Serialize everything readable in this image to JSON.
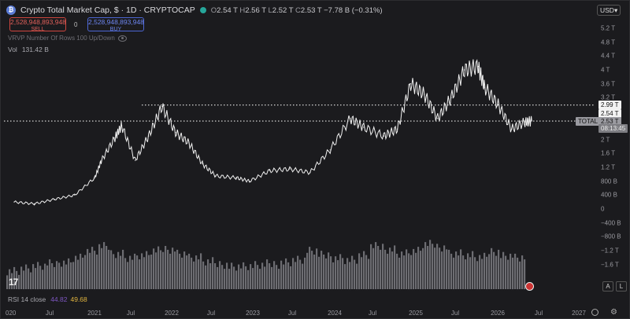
{
  "header": {
    "logo_glyph": "₿",
    "title": "Crypto Total Market Cap, $ · 1D · CRYPTOCAP",
    "ohlc": {
      "o_label": "O",
      "o": "2.54 T",
      "h_label": "H",
      "h": "2.56 T",
      "l_label": "L",
      "l": "2.52 T",
      "c_label": "C",
      "c": "2.53 T",
      "change": "−7.78 B (−0.31%)"
    }
  },
  "currency": {
    "value": "USD"
  },
  "trade": {
    "sell_price": "2,528,948,893,948",
    "sell_label": "SELL",
    "spread": "0",
    "buy_price": "2,528,948,893,948",
    "buy_label": "BUY"
  },
  "indicators": {
    "vrvp": "VRVP Number Of Rows 100 Up/Down",
    "vol_label": "Vol",
    "vol_value": "131.42 B",
    "rsi_label": "RSI 14 close",
    "rsi_value1": "44.82",
    "rsi_value2": "49.68"
  },
  "price_tags": {
    "level_high": "2.99 T",
    "open_tag": "2.54 T",
    "symbol": "TOTAL",
    "last": "2.53 T",
    "countdown": "08:13:45"
  },
  "scale_buttons": {
    "auto": "A",
    "log": "L"
  },
  "colors": {
    "background": "#1b1b1e",
    "line": "#f0f0f0",
    "volume": "#8a8a8f",
    "sell": "#d0463f",
    "buy": "#4c66d4"
  },
  "chart_data": {
    "type": "line",
    "title": "Crypto Total Market Cap, $ · 1D · CRYPTOCAP",
    "y_ticks": [
      "5.2 T",
      "4.8 T",
      "4.4 T",
      "4 T",
      "3.6 T",
      "3.2 T",
      "2.8 T",
      "2 T",
      "1.6 T",
      "1.2 T",
      "800 B",
      "400 B",
      "0",
      "−400 B",
      "−800 B",
      "−1.2 T",
      "−1.6 T"
    ],
    "x_ticks": [
      "020",
      "Jul",
      "2021",
      "Jul",
      "2022",
      "Jul",
      "2023",
      "Jul",
      "2024",
      "Jul",
      "2025",
      "Jul",
      "2026",
      "Jul",
      "2027"
    ],
    "series": [
      {
        "x": [
          "2020-01",
          "2020-04",
          "2020-07",
          "2020-10",
          "2021-01",
          "2021-02",
          "2021-04",
          "2021-05",
          "2021-07",
          "2021-09",
          "2021-11",
          "2022-01",
          "2022-03",
          "2022-05",
          "2022-07",
          "2022-10",
          "2022-12",
          "2023-03",
          "2023-06",
          "2023-09",
          "2023-12",
          "2024-03",
          "2024-05",
          "2024-08",
          "2024-10",
          "2024-12",
          "2025-02",
          "2025-04",
          "2025-06",
          "2025-08",
          "2025-10",
          "2025-11",
          "2026-01",
          "2026-03",
          "2026-05",
          "2026-06"
        ],
        "y": [
          0.2,
          0.15,
          0.28,
          0.4,
          0.9,
          1.4,
          2.05,
          2.4,
          1.4,
          2.1,
          2.95,
          2.2,
          1.9,
          1.3,
          0.95,
          0.9,
          0.8,
          1.1,
          1.15,
          1.05,
          1.7,
          2.6,
          2.35,
          2.1,
          2.3,
          3.6,
          3.3,
          2.6,
          3.2,
          4.0,
          4.1,
          3.5,
          3.0,
          2.3,
          2.5,
          2.53
        ]
      }
    ],
    "levels": [
      2.99,
      2.53
    ],
    "volume": [
      40,
      45,
      50,
      55,
      60,
      70,
      85,
      95,
      80,
      70,
      75,
      85,
      90,
      80,
      70,
      60,
      55,
      50,
      50,
      52,
      55,
      60,
      65,
      85,
      75,
      70,
      65,
      75,
      95,
      90,
      80,
      85,
      100,
      95,
      80,
      75,
      70,
      85,
      75,
      70
    ],
    "ylim": [
      -1.8,
      5.4
    ]
  }
}
